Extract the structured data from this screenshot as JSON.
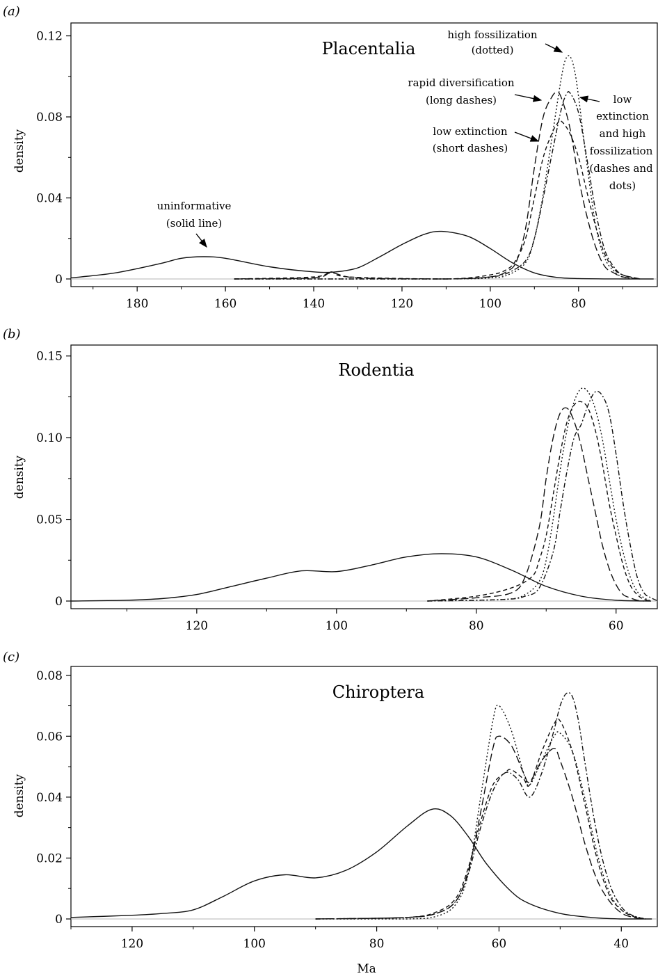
{
  "figure": {
    "panels": [
      {
        "label": "(a)",
        "title": "Placentalia",
        "ylabel": "density"
      },
      {
        "label": "(b)",
        "title": "Rodentia",
        "ylabel": "density"
      },
      {
        "label": "(c)",
        "title": "Chiroptera",
        "ylabel": "density"
      }
    ],
    "xlabel": "Ma",
    "annotations": [
      {
        "id": "high-fossilization",
        "lines": [
          "high fossilization",
          "(dotted)"
        ]
      },
      {
        "id": "rapid-diversification",
        "lines": [
          "rapid diversification",
          "(long dashes)"
        ]
      },
      {
        "id": "low-extinction",
        "lines": [
          "low extinction",
          "(short dashes)"
        ]
      },
      {
        "id": "low-ext-high-foss",
        "lines": [
          "low",
          "extinction",
          "and high",
          "fossilization",
          "(dashes and",
          "dots)"
        ]
      },
      {
        "id": "uninformative",
        "lines": [
          "uninformative",
          "(solid line)"
        ]
      }
    ]
  },
  "chart_data": [
    {
      "type": "line",
      "title": "Placentalia",
      "panel_label": "(a)",
      "xlabel": "",
      "ylabel": "density",
      "x_reversed": true,
      "xlim": [
        195,
        62
      ],
      "ylim": [
        0,
        0.125
      ],
      "xticks": [
        180,
        160,
        140,
        120,
        100,
        80
      ],
      "yticks": [
        0,
        0.04,
        0.08,
        0.12
      ],
      "ytick_labels": [
        "0",
        "0.04",
        "0.08",
        "0.12"
      ],
      "series": [
        {
          "style": "solid",
          "x": [
            195,
            185,
            175,
            170,
            165,
            160,
            150,
            140,
            135,
            130,
            125,
            120,
            115,
            111,
            105,
            100,
            95,
            90,
            85,
            80,
            70,
            63
          ],
          "y": [
            0.0005,
            0.003,
            0.0075,
            0.0102,
            0.011,
            0.0102,
            0.006,
            0.0035,
            0.0035,
            0.0055,
            0.011,
            0.017,
            0.022,
            0.0235,
            0.021,
            0.015,
            0.008,
            0.003,
            0.0008,
            0.0002,
            0,
            0
          ]
        },
        {
          "style": "long-dash",
          "x": [
            158,
            140,
            136,
            130,
            110,
            100,
            96,
            94,
            92,
            90,
            88,
            86,
            85,
            84,
            82,
            80,
            78,
            76,
            74,
            72,
            70,
            66
          ],
          "y": [
            0,
            0.0005,
            0.003,
            0.0005,
            0,
            0.001,
            0.004,
            0.009,
            0.025,
            0.055,
            0.08,
            0.09,
            0.092,
            0.09,
            0.075,
            0.05,
            0.03,
            0.015,
            0.006,
            0.003,
            0.001,
            0
          ]
        },
        {
          "style": "short-dash",
          "x": [
            158,
            140,
            136,
            132,
            110,
            100,
            96,
            94,
            92,
            90,
            88,
            86,
            85,
            84,
            82,
            80,
            78,
            76,
            74,
            72,
            70,
            66
          ],
          "y": [
            0,
            0.001,
            0.0035,
            0.001,
            0,
            0.002,
            0.005,
            0.01,
            0.02,
            0.04,
            0.06,
            0.072,
            0.076,
            0.078,
            0.072,
            0.06,
            0.042,
            0.025,
            0.012,
            0.005,
            0.002,
            0
          ]
        },
        {
          "style": "dotted",
          "x": [
            158,
            140,
            110,
            100,
            96,
            92,
            90,
            88,
            86,
            84,
            83,
            82,
            81,
            80,
            78,
            76,
            74,
            72,
            70,
            66
          ],
          "y": [
            0,
            0,
            0,
            0.0005,
            0.002,
            0.008,
            0.02,
            0.042,
            0.07,
            0.098,
            0.108,
            0.11,
            0.104,
            0.09,
            0.055,
            0.025,
            0.01,
            0.004,
            0.001,
            0
          ]
        },
        {
          "style": "dash-dot",
          "x": [
            158,
            140,
            110,
            100,
            96,
            92,
            90,
            88,
            86,
            84,
            83,
            82,
            80,
            78,
            76,
            74,
            72,
            70,
            66
          ],
          "y": [
            0,
            0,
            0,
            0.001,
            0.003,
            0.009,
            0.02,
            0.04,
            0.062,
            0.083,
            0.09,
            0.092,
            0.082,
            0.058,
            0.032,
            0.014,
            0.006,
            0.002,
            0
          ]
        }
      ]
    },
    {
      "type": "line",
      "title": "Rodentia",
      "panel_label": "(b)",
      "xlabel": "",
      "ylabel": "density",
      "x_reversed": true,
      "xlim": [
        138,
        54
      ],
      "ylim": [
        0,
        0.155
      ],
      "xticks": [
        120,
        100,
        80,
        60
      ],
      "yticks": [
        0,
        0.05,
        0.1,
        0.15
      ],
      "ytick_labels": [
        "0",
        "0.05",
        "0.10",
        "0.15"
      ],
      "series": [
        {
          "style": "solid",
          "x": [
            138,
            130,
            125,
            120,
            115,
            110,
            105,
            100,
            95,
            90,
            85,
            80,
            75,
            70,
            65,
            60,
            55
          ],
          "y": [
            0,
            0.0005,
            0.0015,
            0.004,
            0.009,
            0.014,
            0.0185,
            0.018,
            0.022,
            0.027,
            0.029,
            0.027,
            0.019,
            0.009,
            0.003,
            0.0005,
            0
          ]
        },
        {
          "style": "long-dash",
          "x": [
            87,
            80,
            75,
            73,
            71,
            70,
            69,
            68,
            67,
            66,
            65,
            64,
            63,
            62,
            61,
            60,
            59,
            58,
            57,
            56
          ],
          "y": [
            0,
            0.002,
            0.005,
            0.015,
            0.045,
            0.075,
            0.1,
            0.115,
            0.118,
            0.11,
            0.095,
            0.075,
            0.055,
            0.035,
            0.02,
            0.01,
            0.004,
            0.002,
            0.0005,
            0
          ]
        },
        {
          "style": "short-dash",
          "x": [
            87,
            80,
            75,
            72,
            71,
            70,
            69,
            68,
            67,
            66,
            65,
            64,
            63,
            62,
            61,
            60,
            59,
            58,
            57,
            56,
            55
          ],
          "y": [
            0,
            0.003,
            0.008,
            0.015,
            0.025,
            0.04,
            0.065,
            0.09,
            0.11,
            0.12,
            0.122,
            0.118,
            0.105,
            0.085,
            0.06,
            0.04,
            0.022,
            0.01,
            0.004,
            0.001,
            0
          ]
        },
        {
          "style": "dotted",
          "x": [
            87,
            76,
            73,
            71,
            70,
            69,
            68,
            67,
            66,
            65,
            64,
            63,
            62,
            61,
            60,
            59,
            58,
            57,
            56,
            55
          ],
          "y": [
            0,
            0.001,
            0.004,
            0.012,
            0.025,
            0.05,
            0.08,
            0.105,
            0.122,
            0.13,
            0.128,
            0.118,
            0.1,
            0.075,
            0.05,
            0.03,
            0.015,
            0.006,
            0.002,
            0
          ]
        },
        {
          "style": "dash-dot",
          "x": [
            87,
            76,
            73,
            71,
            69,
            68,
            67,
            66,
            65,
            64,
            63,
            62,
            61,
            60,
            59,
            58,
            57,
            56,
            55,
            54
          ],
          "y": [
            0,
            0.001,
            0.003,
            0.008,
            0.03,
            0.055,
            0.08,
            0.1,
            0.108,
            0.12,
            0.128,
            0.126,
            0.115,
            0.09,
            0.06,
            0.035,
            0.015,
            0.005,
            0.002,
            0
          ]
        }
      ]
    },
    {
      "type": "line",
      "title": "Chiroptera",
      "panel_label": "(c)",
      "xlabel": "Ma",
      "ylabel": "density",
      "x_reversed": true,
      "xlim": [
        130,
        34
      ],
      "ylim": [
        0,
        0.082
      ],
      "xticks": [
        120,
        100,
        80,
        60,
        40
      ],
      "yticks": [
        0,
        0.02,
        0.04,
        0.06,
        0.08
      ],
      "ytick_labels": [
        "0",
        "0.02",
        "0.04",
        "0.06",
        "0.08"
      ],
      "series": [
        {
          "style": "solid",
          "x": [
            130,
            120,
            115,
            110,
            105,
            100,
            95,
            90,
            85,
            80,
            75,
            71,
            68,
            65,
            62,
            58,
            55,
            50,
            45,
            40,
            35
          ],
          "y": [
            0.0005,
            0.0012,
            0.0018,
            0.003,
            0.0075,
            0.0125,
            0.0145,
            0.0135,
            0.016,
            0.022,
            0.0305,
            0.036,
            0.034,
            0.027,
            0.018,
            0.009,
            0.005,
            0.0018,
            0.0005,
            0,
            0
          ]
        },
        {
          "style": "long-dash",
          "x": [
            90,
            75,
            70,
            67,
            65,
            63,
            61,
            60,
            58,
            56,
            55,
            53,
            51,
            50,
            48,
            46,
            44,
            42,
            40,
            38,
            36
          ],
          "y": [
            0,
            0.0005,
            0.002,
            0.006,
            0.016,
            0.035,
            0.056,
            0.06,
            0.057,
            0.048,
            0.045,
            0.052,
            0.056,
            0.052,
            0.04,
            0.025,
            0.013,
            0.006,
            0.002,
            0.0005,
            0
          ]
        },
        {
          "style": "short-dash",
          "x": [
            90,
            75,
            70,
            67,
            65,
            63,
            61,
            59,
            58,
            56,
            55,
            53,
            51,
            50,
            48,
            46,
            44,
            42,
            40,
            38,
            36
          ],
          "y": [
            0,
            0.0005,
            0.0025,
            0.007,
            0.017,
            0.032,
            0.044,
            0.048,
            0.049,
            0.046,
            0.044,
            0.055,
            0.064,
            0.065,
            0.055,
            0.038,
            0.02,
            0.008,
            0.003,
            0.0008,
            0
          ]
        },
        {
          "style": "dotted",
          "x": [
            90,
            75,
            70,
            67,
            65,
            63,
            61,
            60,
            58,
            56,
            55,
            53,
            51,
            50,
            48,
            46,
            44,
            42,
            40,
            38,
            36
          ],
          "y": [
            0,
            0,
            0.001,
            0.005,
            0.015,
            0.04,
            0.065,
            0.07,
            0.062,
            0.048,
            0.044,
            0.052,
            0.06,
            0.061,
            0.055,
            0.04,
            0.022,
            0.009,
            0.003,
            0.001,
            0
          ]
        },
        {
          "style": "dash-dot",
          "x": [
            90,
            75,
            70,
            67,
            65,
            63,
            61,
            59,
            57,
            55,
            53,
            51,
            50,
            49,
            48,
            47,
            46,
            44,
            42,
            40,
            38,
            36
          ],
          "y": [
            0,
            0.0005,
            0.002,
            0.006,
            0.015,
            0.03,
            0.042,
            0.048,
            0.046,
            0.04,
            0.048,
            0.062,
            0.07,
            0.074,
            0.073,
            0.065,
            0.052,
            0.028,
            0.012,
            0.004,
            0.001,
            0
          ]
        }
      ]
    }
  ]
}
